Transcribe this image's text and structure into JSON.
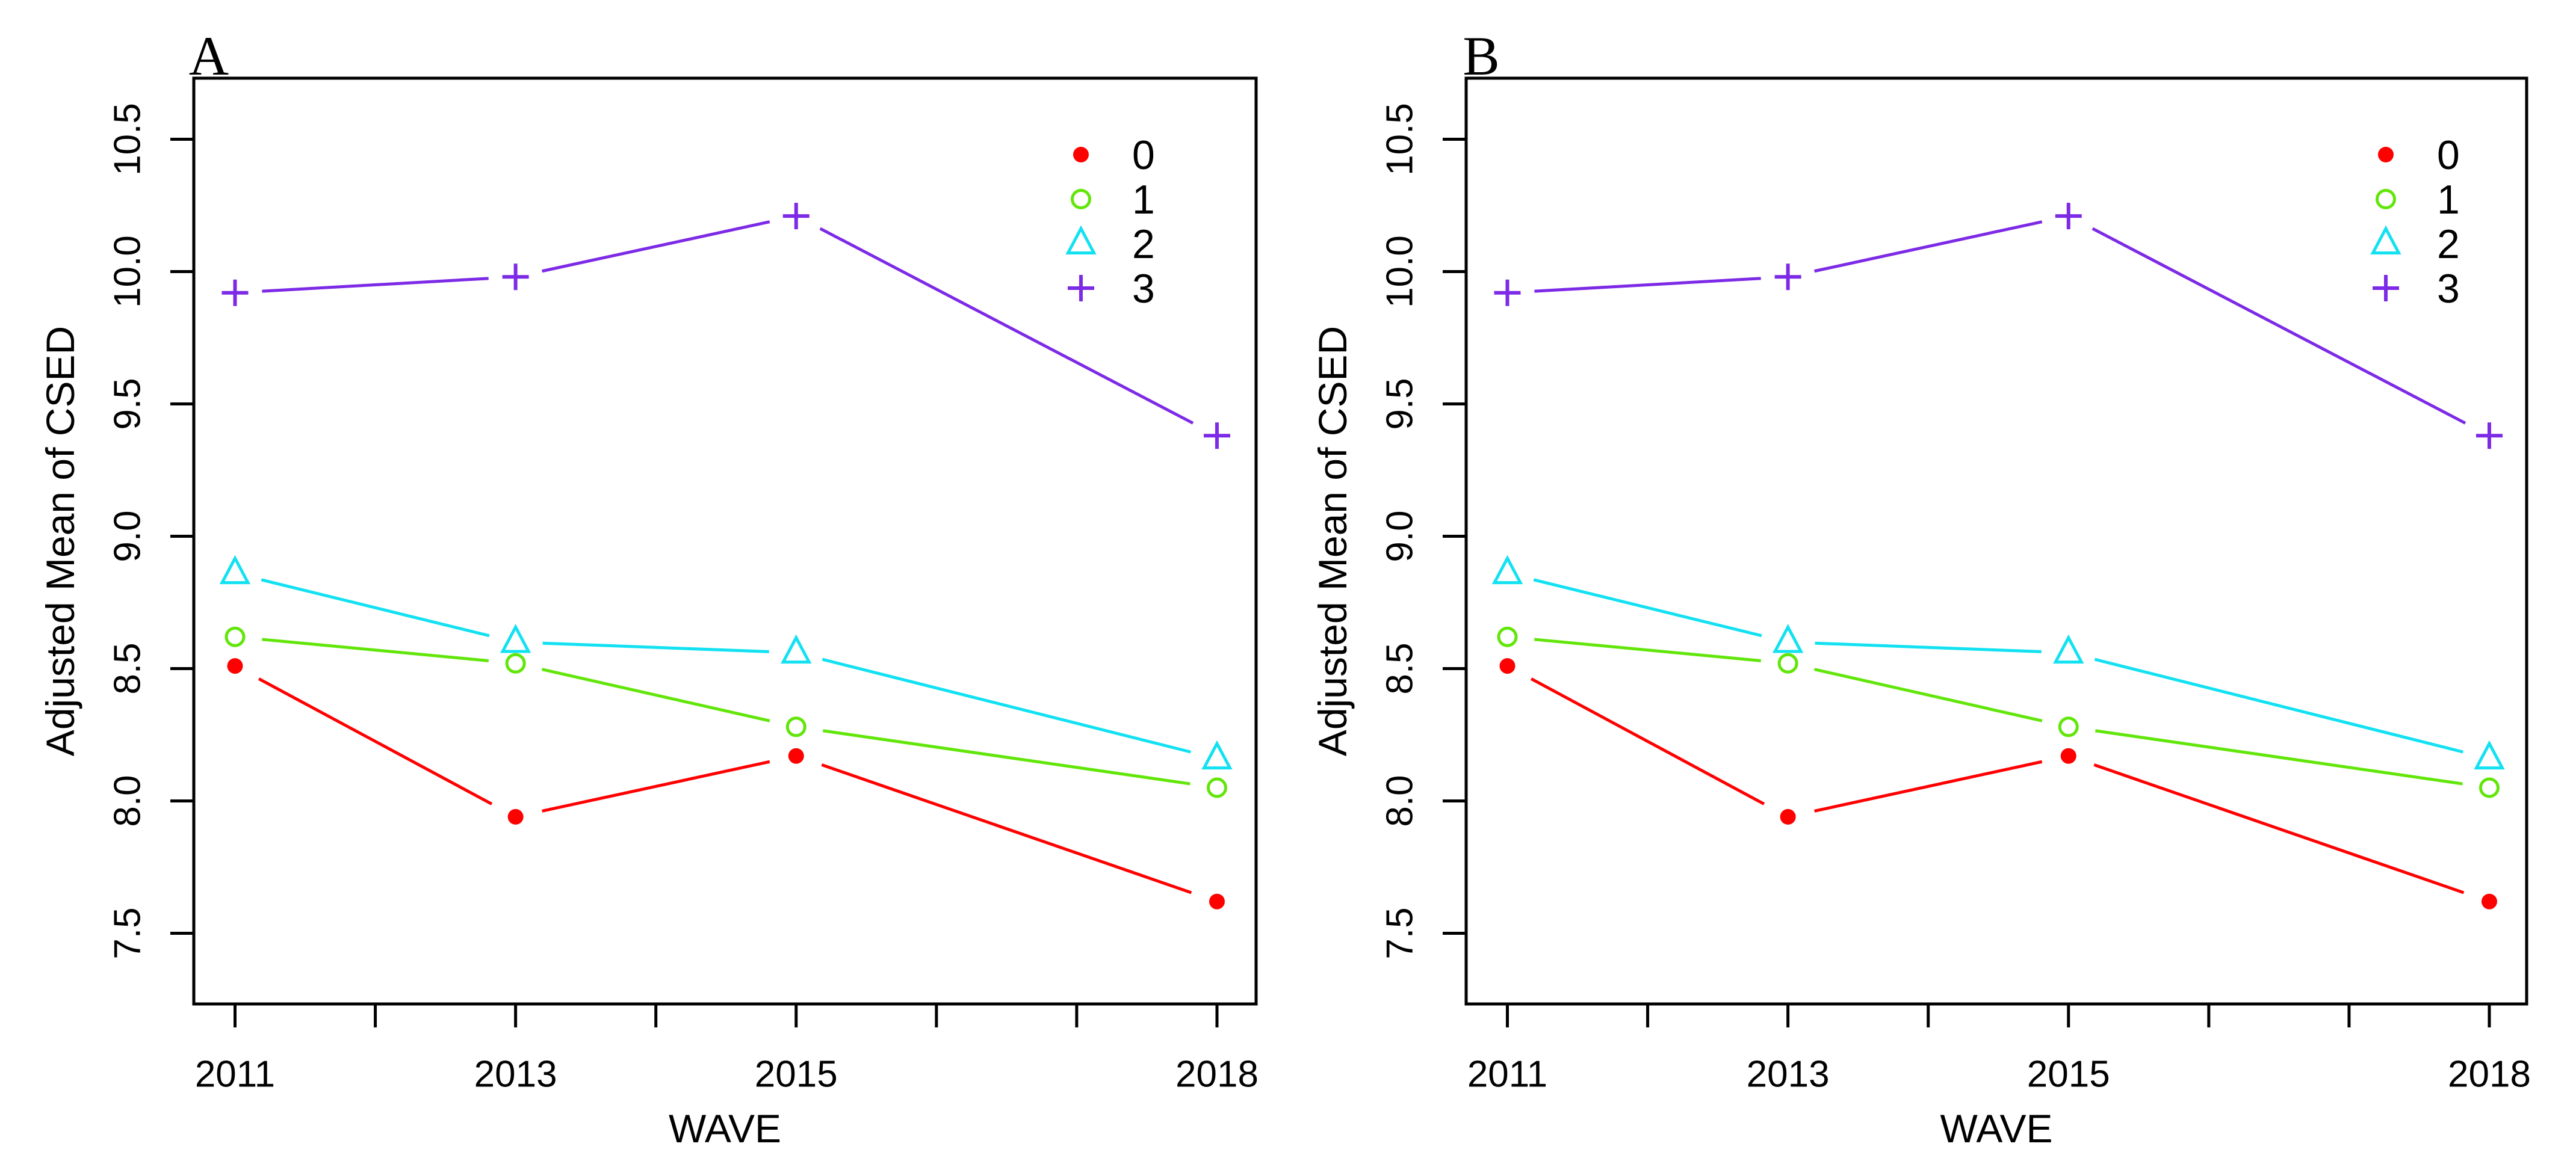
{
  "figure": {
    "background": "#FFFFFF",
    "text_color": "#000000",
    "axis_color": "#000000"
  },
  "chart_data": [
    {
      "type": "line",
      "panel_label": "A",
      "xlabel": "WAVE",
      "ylabel": "Adjusted Mean of CSED",
      "x": [
        2011,
        2013,
        2015,
        2018
      ],
      "x_tick_labels": [
        "2011",
        "2013",
        "2015",
        "2018"
      ],
      "x_axis_ticks": [
        2011,
        2012,
        2013,
        2014,
        2015,
        2016,
        2017,
        2018
      ],
      "y_ticks": [
        10.5,
        10.0,
        9.5,
        9.0,
        8.5,
        8.0,
        7.5
      ],
      "y_tick_labels": [
        "10.5",
        "10.0",
        "9.5",
        "9.0",
        "8.5",
        "8.0",
        "7.5"
      ],
      "xlim": [
        2010.71,
        2018.28
      ],
      "ylim": [
        7.23,
        10.73
      ],
      "grid": false,
      "legend": {
        "position": "top-right-inside",
        "entries": [
          "0",
          "1",
          "2",
          "3"
        ]
      },
      "series": [
        {
          "name": "0",
          "marker": "filled-circle",
          "color": "#FF0000",
          "values": [
            8.51,
            7.94,
            8.17,
            7.62
          ]
        },
        {
          "name": "1",
          "marker": "open-circle",
          "color": "#62E60A",
          "values": [
            8.62,
            8.52,
            8.28,
            8.05
          ]
        },
        {
          "name": "2",
          "marker": "open-triangle",
          "color": "#12E1F2",
          "values": [
            8.86,
            8.6,
            8.56,
            8.16
          ]
        },
        {
          "name": "3",
          "marker": "plus",
          "color": "#7D2AE6",
          "values": [
            9.92,
            9.98,
            10.21,
            9.38
          ]
        }
      ]
    },
    {
      "type": "line",
      "panel_label": "B",
      "xlabel": "WAVE",
      "ylabel": "Adjusted Mean of CSED",
      "x": [
        2011,
        2013,
        2015,
        2018
      ],
      "x_tick_labels": [
        "2011",
        "2013",
        "2015",
        "2018"
      ],
      "x_axis_ticks": [
        2011,
        2012,
        2013,
        2014,
        2015,
        2016,
        2017,
        2018
      ],
      "y_ticks": [
        10.5,
        10.0,
        9.5,
        9.0,
        8.5,
        8.0,
        7.5
      ],
      "y_tick_labels": [
        "10.5",
        "10.0",
        "9.5",
        "9.0",
        "8.5",
        "8.0",
        "7.5"
      ],
      "xlim": [
        2010.71,
        2018.28
      ],
      "ylim": [
        7.23,
        10.73
      ],
      "grid": false,
      "legend": {
        "position": "top-right-inside",
        "entries": [
          "0",
          "1",
          "2",
          "3"
        ]
      },
      "series": [
        {
          "name": "0",
          "marker": "filled-circle",
          "color": "#FF0000",
          "values": [
            8.51,
            7.94,
            8.17,
            7.62
          ]
        },
        {
          "name": "1",
          "marker": "open-circle",
          "color": "#62E60A",
          "values": [
            8.62,
            8.52,
            8.28,
            8.05
          ]
        },
        {
          "name": "2",
          "marker": "open-triangle",
          "color": "#12E1F2",
          "values": [
            8.86,
            8.6,
            8.56,
            8.16
          ]
        },
        {
          "name": "3",
          "marker": "plus",
          "color": "#7D2AE6",
          "values": [
            9.92,
            9.98,
            10.21,
            9.38
          ]
        }
      ]
    }
  ]
}
